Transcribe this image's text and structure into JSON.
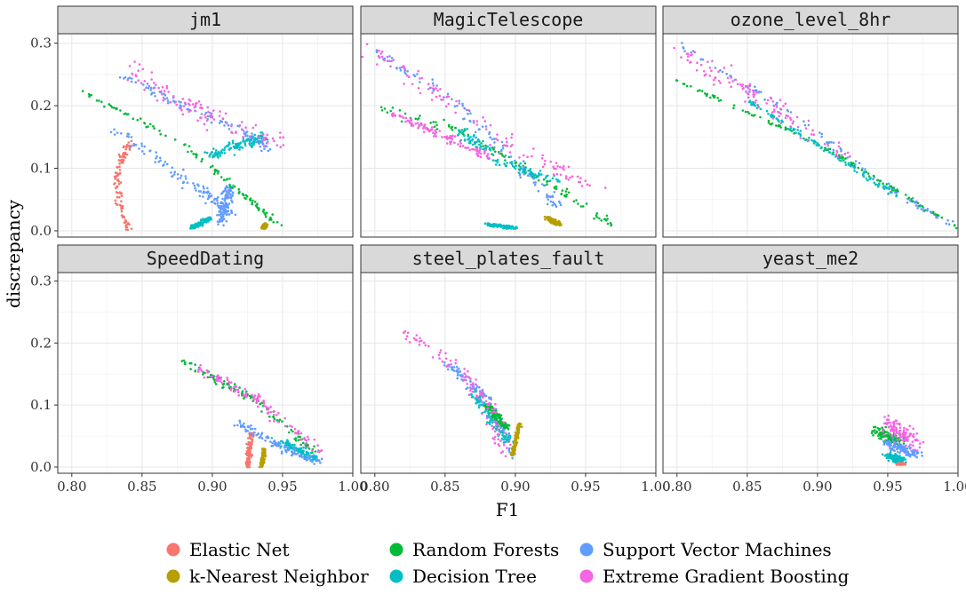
{
  "chart_data": {
    "type": "scatter",
    "facet_layout": "3 columns x 2 rows, shared axes",
    "xlabel": "F1",
    "ylabel": "discrepancy",
    "xlim": [
      0.79,
      1.0
    ],
    "ylim": [
      -0.01,
      0.315
    ],
    "x_ticks": [
      "0.80",
      "0.85",
      "0.90",
      "0.95",
      "1.00"
    ],
    "y_ticks": [
      "0.0",
      "0.1",
      "0.2",
      "0.3"
    ],
    "x_tick_values": [
      0.8,
      0.85,
      0.9,
      0.95,
      1.0
    ],
    "y_tick_values": [
      0.0,
      0.1,
      0.2,
      0.3
    ],
    "grid": true,
    "legend_position": "bottom",
    "series": [
      {
        "name": "Elastic Net",
        "color": "#F8766D"
      },
      {
        "name": "k-Nearest Neighbor",
        "color": "#B79F00"
      },
      {
        "name": "Random Forests",
        "color": "#00BA38"
      },
      {
        "name": "Decision Tree",
        "color": "#00BFC4"
      },
      {
        "name": "Support Vector Machines",
        "color": "#619CFF"
      },
      {
        "name": "Extreme Gradient Boosting",
        "color": "#F564E3"
      }
    ],
    "legend_rows": [
      [
        "Elastic Net",
        "Random Forests",
        "Support Vector Machines"
      ],
      [
        "k-Nearest Neighbor",
        "Decision Tree",
        "Extreme Gradient Boosting"
      ]
    ],
    "panels": [
      {
        "title": "jm1",
        "clusters": [
          {
            "series": "Elastic Net",
            "path": [
              [
                0.84,
                0.005
              ],
              [
                0.834,
                0.04
              ],
              [
                0.832,
                0.09
              ],
              [
                0.836,
                0.12
              ],
              [
                0.842,
                0.14
              ]
            ],
            "spread": [
              0.004,
              0.008
            ]
          },
          {
            "series": "Support Vector Machines",
            "path": [
              [
                0.833,
                0.16
              ],
              [
                0.87,
                0.1
              ],
              [
                0.895,
                0.06
              ],
              [
                0.915,
                0.025
              ]
            ],
            "spread": [
              0.008,
              0.012
            ]
          },
          {
            "series": "Support Vector Machines",
            "path": [
              [
                0.835,
                0.25
              ],
              [
                0.88,
                0.2
              ],
              [
                0.92,
                0.16
              ],
              [
                0.94,
                0.13
              ]
            ],
            "spread": [
              0.008,
              0.01
            ]
          },
          {
            "series": "Support Vector Machines",
            "path": [
              [
                0.905,
                0.01
              ],
              [
                0.912,
                0.07
              ]
            ],
            "spread": [
              0.006,
              0.008
            ]
          },
          {
            "series": "Random Forests",
            "path": [
              [
                0.8,
                0.23
              ],
              [
                0.88,
                0.14
              ],
              [
                0.92,
                0.06
              ],
              [
                0.948,
                0.01
              ]
            ],
            "spread": [
              0.004,
              0.006
            ]
          },
          {
            "series": "Decision Tree",
            "path": [
              [
                0.9,
                0.12
              ],
              [
                0.935,
                0.15
              ]
            ],
            "spread": [
              0.01,
              0.012
            ]
          },
          {
            "series": "Decision Tree",
            "path": [
              [
                0.898,
                0.02
              ],
              [
                0.885,
                0.005
              ]
            ],
            "spread": [
              0.003,
              0.005
            ]
          },
          {
            "series": "k-Nearest Neighbor",
            "path": [
              [
                0.936,
                0.005
              ],
              [
                0.938,
                0.01
              ]
            ],
            "spread": [
              0.002,
              0.004
            ]
          },
          {
            "series": "Extreme Gradient Boosting",
            "path": [
              [
                0.84,
                0.27
              ],
              [
                0.88,
                0.2
              ],
              [
                0.915,
                0.17
              ],
              [
                0.95,
                0.14
              ]
            ],
            "spread": [
              0.015,
              0.022
            ]
          }
        ]
      },
      {
        "title": "MagicTelescope",
        "clusters": [
          {
            "series": "Random Forests",
            "path": [
              [
                0.8,
                0.2
              ],
              [
                0.86,
                0.16
              ],
              [
                0.92,
                0.08
              ],
              [
                0.97,
                0.01
              ]
            ],
            "spread": [
              0.006,
              0.012
            ]
          },
          {
            "series": "Support Vector Machines",
            "path": [
              [
                0.8,
                0.29
              ],
              [
                0.86,
                0.2
              ],
              [
                0.9,
                0.11
              ],
              [
                0.93,
                0.04
              ]
            ],
            "spread": [
              0.008,
              0.01
            ]
          },
          {
            "series": "Decision Tree",
            "path": [
              [
                0.86,
                0.16
              ],
              [
                0.89,
                0.11
              ],
              [
                0.93,
                0.08
              ]
            ],
            "spread": [
              0.008,
              0.01
            ]
          },
          {
            "series": "Decision Tree",
            "path": [
              [
                0.88,
                0.01
              ],
              [
                0.9,
                0.005
              ]
            ],
            "spread": [
              0.004,
              0.004
            ]
          },
          {
            "series": "k-Nearest Neighbor",
            "path": [
              [
                0.923,
                0.02
              ],
              [
                0.932,
                0.01
              ]
            ],
            "spread": [
              0.003,
              0.005
            ]
          },
          {
            "series": "Extreme Gradient Boosting",
            "path": [
              [
                0.8,
                0.29
              ],
              [
                0.85,
                0.21
              ],
              [
                0.9,
                0.13
              ],
              [
                0.96,
                0.07
              ]
            ],
            "spread": [
              0.014,
              0.02
            ]
          },
          {
            "series": "Extreme Gradient Boosting",
            "path": [
              [
                0.81,
                0.19
              ],
              [
                0.88,
                0.12
              ]
            ],
            "spread": [
              0.006,
              0.008
            ]
          }
        ]
      },
      {
        "title": "ozone_level_8hr",
        "clusters": [
          {
            "series": "Support Vector Machines",
            "path": [
              [
                0.8,
                0.3
              ],
              [
                0.88,
                0.19
              ],
              [
                0.95,
                0.07
              ],
              [
                0.995,
                0.01
              ]
            ],
            "spread": [
              0.004,
              0.007
            ]
          },
          {
            "series": "Random Forests",
            "path": [
              [
                0.8,
                0.24
              ],
              [
                0.9,
                0.14
              ],
              [
                1.0,
                0.005
              ]
            ],
            "spread": [
              0.002,
              0.004
            ]
          },
          {
            "series": "Decision Tree",
            "path": [
              [
                0.85,
                0.21
              ],
              [
                0.96,
                0.05
              ]
            ],
            "spread": [
              0.003,
              0.005
            ]
          },
          {
            "series": "Extreme Gradient Boosting",
            "path": [
              [
                0.8,
                0.29
              ],
              [
                0.86,
                0.21
              ],
              [
                0.92,
                0.12
              ]
            ],
            "spread": [
              0.012,
              0.022
            ]
          }
        ]
      },
      {
        "title": "SpeedDating",
        "clusters": [
          {
            "series": "Elastic Net",
            "path": [
              [
                0.925,
                0.0
              ],
              [
                0.928,
                0.055
              ]
            ],
            "spread": [
              0.003,
              0.006
            ]
          },
          {
            "series": "k-Nearest Neighbor",
            "path": [
              [
                0.935,
                0.0
              ],
              [
                0.937,
                0.03
              ]
            ],
            "spread": [
              0.002,
              0.005
            ]
          },
          {
            "series": "Random Forests",
            "path": [
              [
                0.88,
                0.17
              ],
              [
                0.93,
                0.11
              ],
              [
                0.975,
                0.02
              ]
            ],
            "spread": [
              0.006,
              0.008
            ]
          },
          {
            "series": "Decision Tree",
            "path": [
              [
                0.95,
                0.04
              ],
              [
                0.975,
                0.01
              ]
            ],
            "spread": [
              0.005,
              0.008
            ]
          },
          {
            "series": "Support Vector Machines",
            "path": [
              [
                0.92,
                0.07
              ],
              [
                0.95,
                0.03
              ],
              [
                0.975,
                0.01
              ]
            ],
            "spread": [
              0.006,
              0.01
            ]
          },
          {
            "series": "Extreme Gradient Boosting",
            "path": [
              [
                0.89,
                0.16
              ],
              [
                0.93,
                0.11
              ],
              [
                0.98,
                0.02
              ]
            ],
            "spread": [
              0.008,
              0.01
            ]
          }
        ]
      },
      {
        "title": "steel_plates_fault",
        "clusters": [
          {
            "series": "Support Vector Machines",
            "path": [
              [
                0.85,
                0.17
              ],
              [
                0.88,
                0.11
              ],
              [
                0.9,
                0.02
              ]
            ],
            "spread": [
              0.006,
              0.008
            ]
          },
          {
            "series": "Decision Tree",
            "path": [
              [
                0.87,
                0.12
              ],
              [
                0.895,
                0.04
              ]
            ],
            "spread": [
              0.006,
              0.008
            ]
          },
          {
            "series": "Random Forests",
            "path": [
              [
                0.88,
                0.1
              ],
              [
                0.895,
                0.06
              ]
            ],
            "spread": [
              0.004,
              0.006
            ]
          },
          {
            "series": "k-Nearest Neighbor",
            "path": [
              [
                0.903,
                0.07
              ],
              [
                0.898,
                0.02
              ]
            ],
            "spread": [
              0.002,
              0.006
            ]
          },
          {
            "series": "Extreme Gradient Boosting",
            "path": [
              [
                0.82,
                0.22
              ],
              [
                0.86,
                0.16
              ],
              [
                0.88,
                0.1
              ],
              [
                0.893,
                0.02
              ]
            ],
            "spread": [
              0.008,
              0.01
            ]
          }
        ]
      },
      {
        "title": "yeast_me2",
        "clusters": [
          {
            "series": "Random Forests",
            "path": [
              [
                0.94,
                0.06
              ],
              [
                0.96,
                0.04
              ]
            ],
            "spread": [
              0.008,
              0.012
            ]
          },
          {
            "series": "Support Vector Machines",
            "path": [
              [
                0.95,
                0.04
              ],
              [
                0.97,
                0.02
              ]
            ],
            "spread": [
              0.008,
              0.012
            ]
          },
          {
            "series": "Decision Tree",
            "path": [
              [
                0.95,
                0.02
              ],
              [
                0.96,
                0.01
              ]
            ],
            "spread": [
              0.006,
              0.008
            ]
          },
          {
            "series": "Elastic Net",
            "path": [
              [
                0.958,
                0.005
              ],
              [
                0.962,
                0.005
              ]
            ],
            "spread": [
              0.003,
              0.002
            ]
          },
          {
            "series": "Extreme Gradient Boosting",
            "path": [
              [
                0.95,
                0.07
              ],
              [
                0.97,
                0.04
              ]
            ],
            "spread": [
              0.01,
              0.02
            ]
          }
        ]
      }
    ]
  }
}
